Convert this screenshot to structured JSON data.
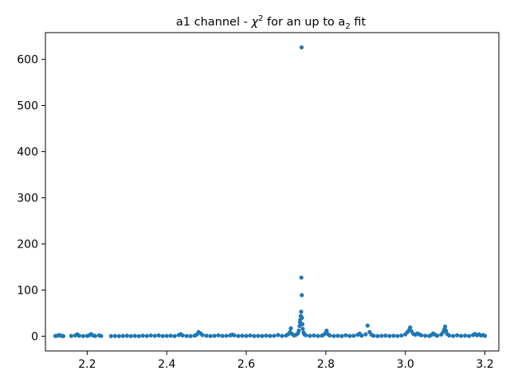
{
  "chart_data": {
    "type": "scatter",
    "title_parts": {
      "prefix": "a1 channel - ",
      "chi": "χ",
      "chi_sup": "2",
      "middle": " for an up to a",
      "a_sub": "2",
      "suffix": " fit"
    },
    "xlabel": "",
    "ylabel": "",
    "xlim": [
      2.095,
      3.235
    ],
    "ylim": [
      -32,
      658
    ],
    "xticks": [
      2.2,
      2.4,
      2.6,
      2.8,
      3.0,
      3.2
    ],
    "xtick_labels": [
      "2.2",
      "2.4",
      "2.6",
      "2.8",
      "3.0",
      "3.2"
    ],
    "yticks": [
      0,
      100,
      200,
      300,
      400,
      500,
      600
    ],
    "ytick_labels": [
      "0",
      "100",
      "200",
      "300",
      "400",
      "500",
      "600"
    ],
    "grid": false,
    "legend": "none",
    "marker_color": "#1f77b4",
    "series": [
      {
        "points": [
          [
            2.12,
            0.5
          ],
          [
            2.125,
            1.2
          ],
          [
            2.13,
            2.5
          ],
          [
            2.135,
            0.8
          ],
          [
            2.14,
            0.3
          ],
          [
            2.16,
            0.6
          ],
          [
            2.17,
            1.5
          ],
          [
            2.175,
            4.0
          ],
          [
            2.18,
            1.0
          ],
          [
            2.19,
            0.4
          ],
          [
            2.2,
            0.7
          ],
          [
            2.205,
            2.0
          ],
          [
            2.21,
            4.5
          ],
          [
            2.215,
            1.5
          ],
          [
            2.22,
            0.5
          ],
          [
            2.23,
            1.8
          ],
          [
            2.235,
            0.4
          ],
          [
            2.26,
            0.3
          ],
          [
            2.27,
            0.5
          ],
          [
            2.28,
            0.2
          ],
          [
            2.29,
            0.6
          ],
          [
            2.3,
            1.0
          ],
          [
            2.31,
            0.3
          ],
          [
            2.32,
            0.8
          ],
          [
            2.33,
            0.2
          ],
          [
            2.34,
            1.1
          ],
          [
            2.35,
            0.5
          ],
          [
            2.36,
            1.5
          ],
          [
            2.37,
            0.8
          ],
          [
            2.38,
            1.6
          ],
          [
            2.39,
            0.4
          ],
          [
            2.4,
            0.7
          ],
          [
            2.41,
            1.0
          ],
          [
            2.42,
            0.3
          ],
          [
            2.43,
            2.5
          ],
          [
            2.435,
            4.5
          ],
          [
            2.44,
            1.5
          ],
          [
            2.45,
            0.6
          ],
          [
            2.46,
            0.3
          ],
          [
            2.47,
            1.2
          ],
          [
            2.475,
            3.0
          ],
          [
            2.48,
            9.0
          ],
          [
            2.485,
            6.0
          ],
          [
            2.49,
            2.5
          ],
          [
            2.5,
            1.0
          ],
          [
            2.51,
            0.4
          ],
          [
            2.52,
            0.8
          ],
          [
            2.53,
            2.0
          ],
          [
            2.54,
            0.5
          ],
          [
            2.55,
            0.9
          ],
          [
            2.56,
            1.8
          ],
          [
            2.565,
            3.5
          ],
          [
            2.57,
            2.0
          ],
          [
            2.58,
            0.4
          ],
          [
            2.59,
            1.0
          ],
          [
            2.6,
            0.5
          ],
          [
            2.61,
            1.5
          ],
          [
            2.62,
            0.3
          ],
          [
            2.63,
            0.8
          ],
          [
            2.64,
            0.4
          ],
          [
            2.65,
            1.2
          ],
          [
            2.66,
            0.6
          ],
          [
            2.67,
            0.9
          ],
          [
            2.68,
            2.5
          ],
          [
            2.69,
            0.5
          ],
          [
            2.7,
            1.5
          ],
          [
            2.705,
            4.0
          ],
          [
            2.71,
            9.0
          ],
          [
            2.712,
            17.0
          ],
          [
            2.715,
            5.0
          ],
          [
            2.72,
            1.5
          ],
          [
            2.725,
            3.0
          ],
          [
            2.73,
            6.0
          ],
          [
            2.732,
            12.0
          ],
          [
            2.734,
            22.0
          ],
          [
            2.735,
            30.0
          ],
          [
            2.736,
            36.0
          ],
          [
            2.737,
            44.0
          ],
          [
            2.738,
            53.0
          ],
          [
            2.7385,
            127.0
          ],
          [
            2.739,
            626.0
          ],
          [
            2.7395,
            89.0
          ],
          [
            2.74,
            40.0
          ],
          [
            2.741,
            26.0
          ],
          [
            2.742,
            16.0
          ],
          [
            2.744,
            8.0
          ],
          [
            2.746,
            4.0
          ],
          [
            2.75,
            2.0
          ],
          [
            2.76,
            0.8
          ],
          [
            2.77,
            1.5
          ],
          [
            2.78,
            0.5
          ],
          [
            2.79,
            1.2
          ],
          [
            2.795,
            3.5
          ],
          [
            2.8,
            7.0
          ],
          [
            2.802,
            12.0
          ],
          [
            2.805,
            4.5
          ],
          [
            2.81,
            1.5
          ],
          [
            2.82,
            0.4
          ],
          [
            2.83,
            1.0
          ],
          [
            2.84,
            0.3
          ],
          [
            2.85,
            2.0
          ],
          [
            2.86,
            0.6
          ],
          [
            2.87,
            1.0
          ],
          [
            2.88,
            3.0
          ],
          [
            2.885,
            5.5
          ],
          [
            2.89,
            1.2
          ],
          [
            2.9,
            4.0
          ],
          [
            2.905,
            23.0
          ],
          [
            2.91,
            9.0
          ],
          [
            2.915,
            3.0
          ],
          [
            2.92,
            1.0
          ],
          [
            2.93,
            0.3
          ],
          [
            2.94,
            0.8
          ],
          [
            2.95,
            1.2
          ],
          [
            2.96,
            0.5
          ],
          [
            2.97,
            1.0
          ],
          [
            2.98,
            0.4
          ],
          [
            2.99,
            1.5
          ],
          [
            3.0,
            4.0
          ],
          [
            3.005,
            9.0
          ],
          [
            3.01,
            14.0
          ],
          [
            3.012,
            19.0
          ],
          [
            3.015,
            11.0
          ],
          [
            3.02,
            5.0
          ],
          [
            3.025,
            3.0
          ],
          [
            3.03,
            6.0
          ],
          [
            3.035,
            4.0
          ],
          [
            3.04,
            2.0
          ],
          [
            3.05,
            1.0
          ],
          [
            3.06,
            0.5
          ],
          [
            3.065,
            2.5
          ],
          [
            3.07,
            6.0
          ],
          [
            3.075,
            3.0
          ],
          [
            3.08,
            1.0
          ],
          [
            3.09,
            3.5
          ],
          [
            3.095,
            9.0
          ],
          [
            3.098,
            15.0
          ],
          [
            3.1,
            21.0
          ],
          [
            3.102,
            12.0
          ],
          [
            3.105,
            5.0
          ],
          [
            3.11,
            1.5
          ],
          [
            3.12,
            0.5
          ],
          [
            3.13,
            2.0
          ],
          [
            3.14,
            0.8
          ],
          [
            3.15,
            1.2
          ],
          [
            3.16,
            0.4
          ],
          [
            3.17,
            2.5
          ],
          [
            3.175,
            5.0
          ],
          [
            3.18,
            2.0
          ],
          [
            3.185,
            4.0
          ],
          [
            3.19,
            1.5
          ],
          [
            3.195,
            2.5
          ],
          [
            3.2,
            0.8
          ]
        ]
      }
    ]
  }
}
